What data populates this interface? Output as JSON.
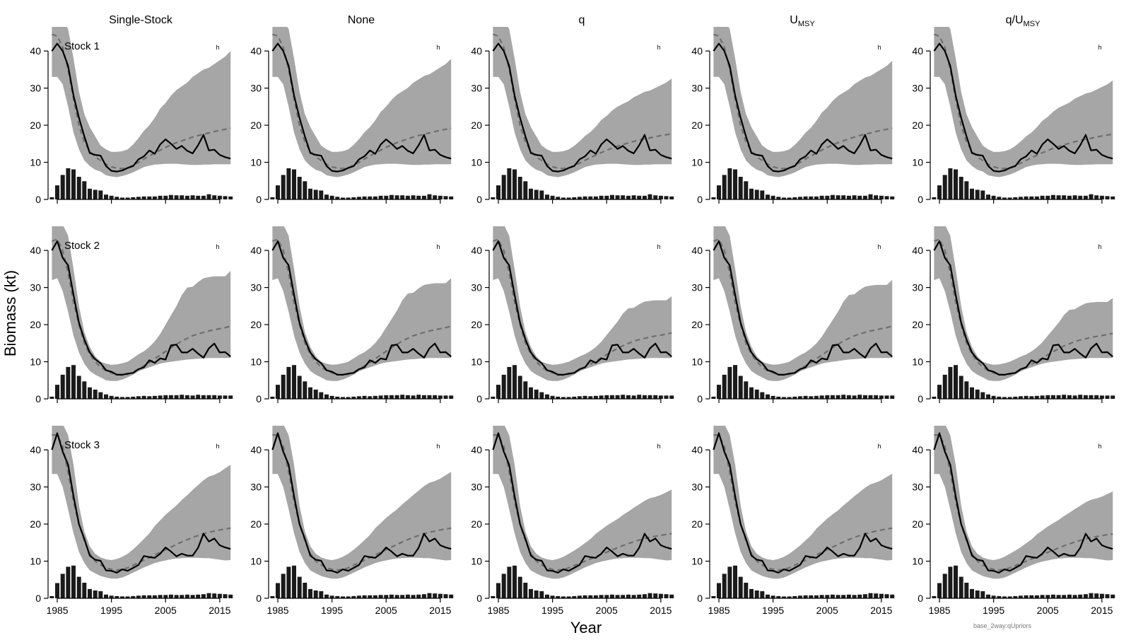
{
  "chart_data": {
    "type": "multi-panel",
    "description_text": "",
    "figure": {
      "ylabel": "Biomass (kt)",
      "xlabel": "Year",
      "footnote": "base_2way:qUpriors",
      "columns": [
        {
          "label": "Single-Stock"
        },
        {
          "label": "None"
        },
        {
          "label": "q"
        },
        {
          "label": "U",
          "sub": "MSY"
        },
        {
          "label": "q/U",
          "sub": "MSY"
        }
      ],
      "rows": [
        "Stock 1",
        "Stock 2",
        "Stock 3"
      ],
      "panel_marker": "h",
      "x_ticks": [
        1985,
        1995,
        2005,
        2015
      ],
      "y_ticks": [
        0,
        10,
        20,
        30,
        40
      ],
      "xlim": [
        1983.3,
        2017.5
      ],
      "ylim": [
        0,
        46.5
      ],
      "years_start": 1984,
      "years_end": 2017,
      "series": [
        {
          "name": "Biomass estimate",
          "style": "solid black line"
        },
        {
          "name": "Reference biomass",
          "style": "dashed grey line"
        },
        {
          "name": "Uncertainty interval",
          "style": "grey shaded band"
        },
        {
          "name": "Catch",
          "style": "black bars"
        }
      ]
    },
    "stocks": [
      {
        "name": "Stock 1",
        "catch": [
          0.6,
          3.8,
          6.6,
          8.4,
          8.1,
          6.1,
          4.9,
          2.9,
          2.6,
          2.4,
          1.3,
          1.0,
          0.7,
          0.5,
          0.5,
          0.6,
          0.7,
          0.8,
          0.8,
          0.8,
          1.0,
          1.0,
          1.2,
          1.1,
          1.1,
          1.0,
          1.1,
          1.0,
          1.0,
          1.4,
          1.1,
          1.0,
          0.9,
          0.8
        ],
        "biomass": [
          40,
          42,
          40,
          36,
          28,
          22,
          17,
          12.5,
          12,
          11.8,
          9,
          7.7,
          7.5,
          7.8,
          8.5,
          9,
          10.8,
          11.6,
          13.2,
          12.3,
          14.8,
          16.2,
          15,
          13.6,
          14.4,
          13.1,
          12.4,
          14.6,
          17.4,
          13.2,
          13.4,
          12,
          11.4,
          11
        ],
        "reference": [
          44.5,
          44,
          41,
          35,
          27,
          20,
          15.5,
          13,
          11.5,
          10.5,
          9.5,
          8.8,
          8.4,
          8.3,
          8.5,
          9.2,
          10,
          10.9,
          11.7,
          12.5,
          13.3,
          14,
          14.7,
          15.3,
          15.8,
          16.3,
          16.8,
          17.2,
          17.6,
          17.9,
          18.3,
          18.6,
          18.9,
          19.2
        ],
        "lower": [
          33,
          33,
          31,
          25,
          18,
          13.5,
          10.5,
          9,
          8,
          7.5,
          6.5,
          6.2,
          6,
          6.3,
          6.7,
          7.3,
          8,
          8.7,
          9.1,
          9.4,
          9.5,
          9.6,
          9.6,
          9.6,
          9.5,
          9.4,
          9.3,
          9.3,
          9.4,
          9.4,
          9.5,
          9.5,
          9.5,
          9.5
        ],
        "upper": [
          48,
          48,
          48,
          46,
          38,
          29,
          23,
          19.5,
          17,
          14.5,
          13.5,
          12.8,
          12.8,
          13,
          13.5,
          14.8,
          16.5,
          18.5,
          20,
          22,
          24.5,
          26,
          28,
          29.5,
          30.5,
          31.5,
          33,
          34,
          35,
          35.5,
          36.5,
          37.5,
          38.5,
          40
        ]
      },
      {
        "name": "Stock 2",
        "catch": [
          0.6,
          3.8,
          6.5,
          8.6,
          9.1,
          6.2,
          4.7,
          3.1,
          2.5,
          1.8,
          1.2,
          0.8,
          0.6,
          0.5,
          0.5,
          0.6,
          0.7,
          0.8,
          0.7,
          0.8,
          0.9,
          1.0,
          1.0,
          1.0,
          1.1,
          1.0,
          0.9,
          1.1,
          1.0,
          1.0,
          1.0,
          0.9,
          0.9,
          0.9
        ],
        "biomass": [
          40,
          42.5,
          38,
          36,
          28,
          20.5,
          16,
          12.5,
          10.7,
          9.6,
          7.7,
          7.3,
          6.5,
          6.5,
          6.8,
          7,
          8,
          8.5,
          10.4,
          9.7,
          10.9,
          10.6,
          14.4,
          14.6,
          12.5,
          12.5,
          13.5,
          12.2,
          11.1,
          13.6,
          14.9,
          12.5,
          12.6,
          11.4
        ],
        "reference": [
          42.5,
          43,
          40,
          34,
          26,
          20,
          15,
          12,
          10,
          8.6,
          7.6,
          7,
          6.6,
          6.4,
          6.6,
          7.2,
          8,
          8.9,
          9.8,
          10.8,
          11.8,
          12.8,
          13.8,
          14.7,
          15.6,
          16.3,
          17,
          17.5,
          17.9,
          18.3,
          18.6,
          18.9,
          19.2,
          19.6
        ],
        "lower": [
          32,
          32.5,
          29,
          23.5,
          17,
          12.5,
          9.5,
          7.5,
          6.5,
          5.8,
          5,
          4.8,
          4.8,
          5.2,
          5.8,
          6.5,
          7.4,
          8,
          8.5,
          9,
          9.5,
          9.8,
          10,
          10.2,
          10.4,
          10.6,
          10.7,
          10.8,
          10.9,
          11,
          11,
          11,
          11,
          11
        ],
        "upper": [
          48,
          48,
          47,
          44,
          35,
          25,
          18,
          14,
          11.5,
          10,
          9.5,
          9.2,
          9.3,
          9.6,
          10,
          11,
          12,
          12.8,
          14,
          15.5,
          17.5,
          20,
          22.5,
          25,
          28,
          30,
          30.2,
          31.5,
          32.5,
          32.8,
          33,
          33,
          33,
          34.5
        ]
      },
      {
        "name": "Stock 3",
        "catch": [
          0.6,
          4.1,
          6.6,
          8.5,
          8.8,
          5.8,
          4.2,
          2.5,
          2.1,
          1.9,
          1.0,
          0.7,
          0.6,
          0.5,
          0.5,
          0.6,
          0.7,
          0.8,
          0.8,
          0.8,
          0.9,
          0.9,
          1.0,
          0.9,
          0.9,
          1.0,
          0.9,
          1.0,
          1.1,
          1.4,
          1.3,
          1.2,
          1.1,
          1.0
        ],
        "biomass": [
          40,
          44.5,
          39.5,
          36,
          27.5,
          20,
          16,
          11.5,
          10.4,
          10.1,
          7.5,
          7.4,
          6.9,
          7.8,
          7.4,
          8.2,
          9,
          11.4,
          11.1,
          10.9,
          12,
          13.7,
          12.6,
          11.3,
          12,
          11.5,
          11.5,
          13.6,
          17.4,
          15.3,
          16.1,
          14.3,
          13.7,
          13.3
        ],
        "reference": [
          44,
          44,
          41,
          34,
          26,
          20,
          15.5,
          12,
          10,
          9,
          8.2,
          7.8,
          7.6,
          7.8,
          8.2,
          8.9,
          9.6,
          10.3,
          11,
          11.7,
          12.4,
          13.1,
          13.8,
          14.5,
          15.2,
          15.8,
          16.4,
          16.9,
          17.4,
          17.8,
          18.1,
          18.4,
          18.7,
          18.9
        ],
        "lower": [
          33.5,
          33.5,
          30,
          24,
          17.5,
          12.5,
          9.5,
          7.5,
          6.7,
          6,
          5.6,
          5.3,
          5.3,
          5.6,
          6.2,
          6.9,
          7.6,
          8.3,
          8.9,
          9.5,
          9.9,
          10.2,
          10.5,
          10.7,
          10.8,
          10.9,
          10.9,
          10.9,
          10.8,
          10.8,
          10.6,
          10.4,
          10.2,
          10.3
        ],
        "upper": [
          48,
          48,
          47,
          44,
          36,
          25,
          18,
          14,
          12,
          11,
          10.5,
          10.3,
          10.6,
          11.2,
          12,
          13.2,
          14.5,
          16,
          17.5,
          19.5,
          21,
          22.5,
          23.8,
          25,
          26.5,
          27.8,
          29.2,
          30.5,
          31.8,
          32.8,
          33.3,
          34,
          35,
          36
        ]
      }
    ]
  }
}
